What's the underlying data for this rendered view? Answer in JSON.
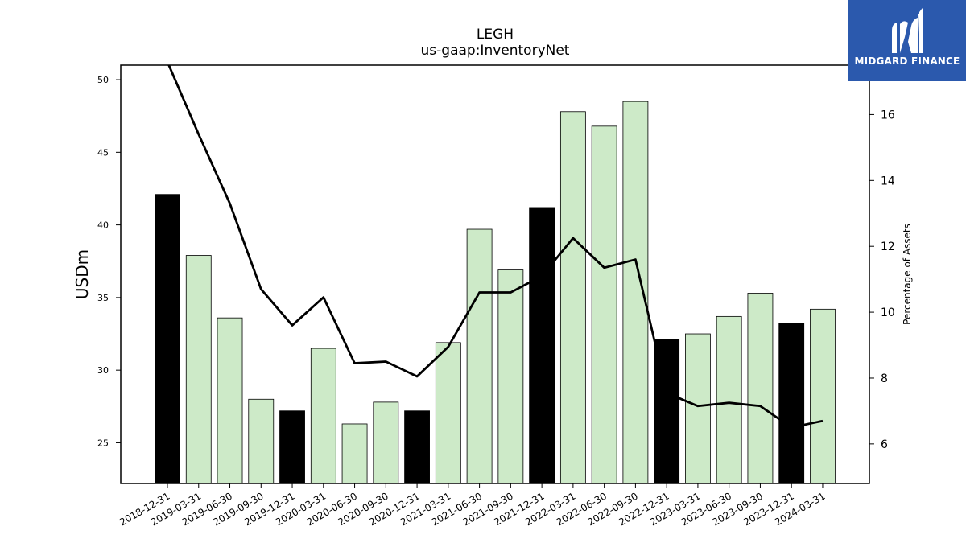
{
  "chart_data": {
    "type": "bar",
    "title": "LEGH",
    "subtitle": "us-gaap:InventoryNet",
    "ylabel": "USDm",
    "y2label": "Percentage of Assets",
    "ylim": [
      22.2,
      51.0
    ],
    "y2lim": [
      4.8,
      17.5
    ],
    "yticks": [
      25,
      30,
      35,
      40,
      45,
      50
    ],
    "y2ticks": [
      6,
      8,
      10,
      12,
      14,
      16
    ],
    "categories": [
      "2018-12-31",
      "2019-03-31",
      "2019-06-30",
      "2019-09-30",
      "2019-12-31",
      "2020-03-31",
      "2020-06-30",
      "2020-09-30",
      "2020-12-31",
      "2021-03-31",
      "2021-06-30",
      "2021-09-30",
      "2021-12-31",
      "2022-03-31",
      "2022-06-30",
      "2022-09-30",
      "2022-12-31",
      "2023-03-31",
      "2023-06-30",
      "2023-09-30",
      "2023-12-31",
      "2024-03-31"
    ],
    "series": [
      {
        "type": "bar",
        "values": [
          42.1,
          37.9,
          33.6,
          28.0,
          27.2,
          31.5,
          26.3,
          27.8,
          27.2,
          31.9,
          39.7,
          36.9,
          41.2,
          47.8,
          46.8,
          48.5,
          32.1,
          32.5,
          33.7,
          35.3,
          33.2,
          34.2
        ],
        "highlight": [
          true,
          false,
          false,
          false,
          true,
          false,
          false,
          false,
          true,
          false,
          false,
          false,
          true,
          false,
          false,
          false,
          true,
          false,
          false,
          false,
          true,
          false
        ]
      },
      {
        "type": "line",
        "axis": "right",
        "values": [
          17.6,
          15.4,
          13.3,
          10.7,
          9.6,
          10.45,
          8.45,
          8.5,
          8.05,
          8.95,
          10.6,
          10.6,
          11.1,
          12.25,
          11.35,
          11.6,
          7.55,
          7.15,
          7.25,
          7.15,
          6.5,
          6.7
        ]
      }
    ],
    "colors": {
      "bar_default": "#cdeac8",
      "bar_highlight": "#000000",
      "line": "#000000",
      "logo_bg": "#2b59ad"
    }
  },
  "logo": {
    "text": "MIDGARD FINANCE",
    "icon": "midgard-logo-icon"
  }
}
